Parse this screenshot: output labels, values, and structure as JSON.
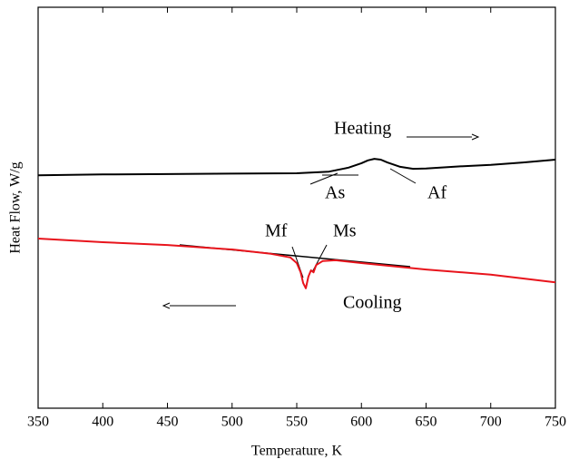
{
  "chart_data": {
    "type": "line",
    "x_label": "Temperature, K",
    "y_label": "Heat Flow, W/g",
    "xlim": [
      350,
      750
    ],
    "xticks": [
      350,
      400,
      450,
      500,
      550,
      600,
      650,
      700,
      750
    ],
    "ylim": [
      0,
      100
    ],
    "annotations": [
      "Heating",
      "Cooling",
      "As",
      "Af",
      "Mf",
      "Ms"
    ],
    "series": [
      {
        "color": "#000000",
        "x": [
          350,
          400,
          450,
          500,
          550,
          575,
          590,
          600,
          605,
          610,
          615,
          620,
          630,
          640,
          650,
          675,
          700,
          725,
          750
        ],
        "values": [
          58.1,
          58.3,
          58.4,
          58.5,
          58.6,
          59.0,
          60.0,
          61.1,
          61.8,
          62.2,
          62.0,
          61.3,
          60.2,
          59.7,
          59.8,
          60.3,
          60.7,
          61.3,
          62.0
        ]
      },
      {
        "color": "#e8141c",
        "x": [
          350,
          400,
          450,
          500,
          530,
          545,
          550,
          553,
          555,
          557,
          559,
          561,
          563,
          565,
          570,
          580,
          600,
          650,
          700,
          750
        ],
        "values": [
          42.3,
          41.4,
          40.7,
          39.6,
          38.5,
          37.6,
          36.2,
          33.9,
          31.2,
          29.9,
          32.8,
          34.4,
          33.9,
          35.7,
          36.7,
          36.9,
          36.2,
          34.6,
          33.3,
          31.4
        ]
      }
    ]
  }
}
